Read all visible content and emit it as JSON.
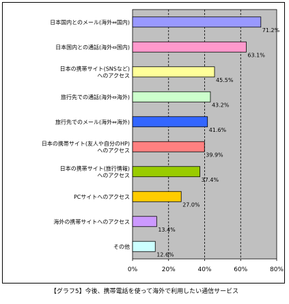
{
  "chart_data": {
    "type": "bar",
    "orientation": "horizontal",
    "categories": [
      [
        "日本国内とのメール(海外⇔国内)"
      ],
      [
        "日本国内との通話(海外⇔国内)"
      ],
      [
        "日本の携帯サイト(SNSなど)",
        "へのアクセス"
      ],
      [
        "旅行先での通話(海外⇔海外)"
      ],
      [
        "旅行先でのメール(海外⇔海外)"
      ],
      [
        "日本の携帯サイト(友人や自分のHP)",
        "へのアクセス"
      ],
      [
        "日本の携帯サイト(旅行情報)",
        "へのアクセス"
      ],
      [
        "PCサイトへのアクセス"
      ],
      [
        "海外の携帯サイトへのアクセス"
      ],
      [
        "その他"
      ]
    ],
    "values": [
      71.2,
      63.1,
      45.5,
      43.2,
      41.6,
      39.9,
      37.4,
      27.0,
      13.4,
      12.6
    ],
    "value_labels": [
      "71.2%",
      "63.1%",
      "45.5%",
      "43.2%",
      "41.6%",
      "39.9%",
      "37.4%",
      "27.0%",
      "13.4%",
      "12.6%"
    ],
    "colors": [
      "#9999ff",
      "#ff99cc",
      "#ffff99",
      "#ccffcc",
      "#3366ff",
      "#ff8080",
      "#99cc00",
      "#ffcc00",
      "#cc99ff",
      "#ccffff"
    ],
    "xlim": [
      0,
      80
    ],
    "xticks": [
      0,
      20,
      40,
      60,
      80
    ],
    "xtick_labels": [
      "0%",
      "20%",
      "40%",
      "60%",
      "80%"
    ],
    "grid": "vertical dashed",
    "plot_background": "#c0c0c0"
  },
  "caption": "【グラフ5】今後、携帯電話を使って海外で利用したい通信サービス"
}
